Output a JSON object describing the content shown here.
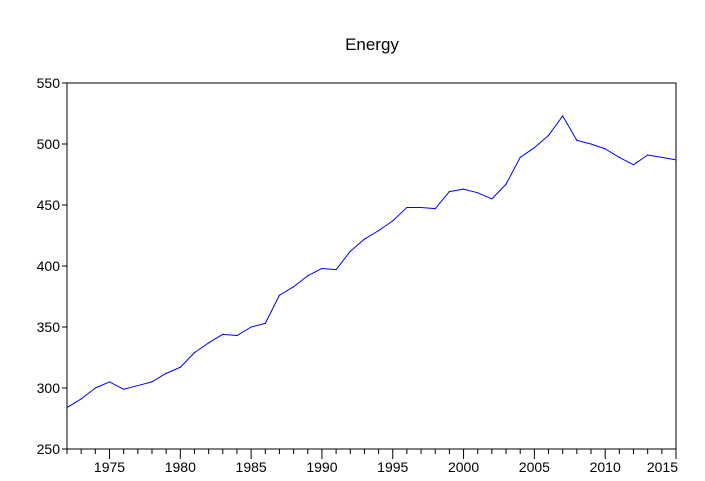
{
  "chart_data": {
    "type": "line",
    "title": "Energy",
    "xlabel": "",
    "ylabel": "",
    "xlim": [
      1972,
      2015
    ],
    "ylim": [
      250,
      550
    ],
    "grid": false,
    "legend": "none",
    "x_ticks": [
      "1975",
      "1980",
      "1985",
      "1990",
      "1995",
      "2000",
      "2005",
      "2010",
      "2015"
    ],
    "y_ticks": [
      "250",
      "300",
      "350",
      "400",
      "450",
      "500",
      "550"
    ],
    "colors": {
      "series": "#0000ff",
      "axis": "#000000",
      "background": "#ffffff"
    },
    "series": [
      {
        "x": [
          1972,
          1973,
          1974,
          1975,
          1976,
          1977,
          1978,
          1979,
          1980,
          1981,
          1982,
          1983,
          1984,
          1985,
          1986,
          1987,
          1988,
          1989,
          1990,
          1991,
          1992,
          1993,
          1994,
          1995,
          1996,
          1997,
          1998,
          1999,
          2000,
          2001,
          2002,
          2003,
          2004,
          2005,
          2006,
          2007,
          2008,
          2009,
          2010,
          2011,
          2012,
          2013,
          2014,
          2015
        ],
        "values": [
          284,
          291,
          300,
          305,
          299,
          302,
          305,
          312,
          317,
          329,
          337,
          344,
          343,
          350,
          353,
          376,
          383,
          392,
          398,
          397,
          412,
          422,
          429,
          437,
          448,
          448,
          447,
          461,
          463,
          460,
          455,
          467,
          489,
          497,
          507,
          523,
          503,
          500,
          496,
          489,
          483,
          491,
          489,
          487
        ]
      }
    ]
  }
}
